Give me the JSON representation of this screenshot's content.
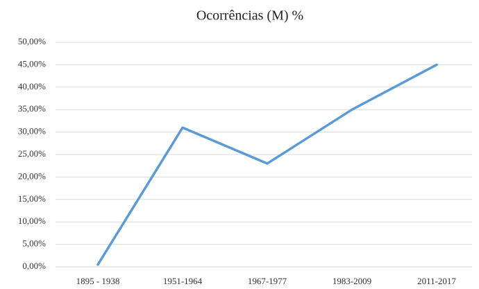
{
  "chart_data": {
    "type": "line",
    "title": "Ocorrências (M) %",
    "categories": [
      "1895 - 1938",
      "1951-1964",
      "1967-1977",
      "1983-2009",
      "2011-2017"
    ],
    "series": [
      {
        "name": "Ocorrências (M) %",
        "color": "#5b9bd5",
        "values": [
          0.5,
          31,
          23,
          35,
          45
        ]
      }
    ],
    "ylim": [
      0,
      50
    ],
    "yticks": [
      {
        "value": 0,
        "label": "0,00%"
      },
      {
        "value": 5,
        "label": "5,00%"
      },
      {
        "value": 10,
        "label": "10,00%"
      },
      {
        "value": 15,
        "label": "15,00%"
      },
      {
        "value": 20,
        "label": "20,00%"
      },
      {
        "value": 25,
        "label": "25,00%"
      },
      {
        "value": 30,
        "label": "30,00%"
      },
      {
        "value": 35,
        "label": "35,00%"
      },
      {
        "value": 40,
        "label": "40,00%"
      },
      {
        "value": 45,
        "label": "45,00%"
      },
      {
        "value": 50,
        "label": "50,00%"
      }
    ],
    "grid": true
  }
}
